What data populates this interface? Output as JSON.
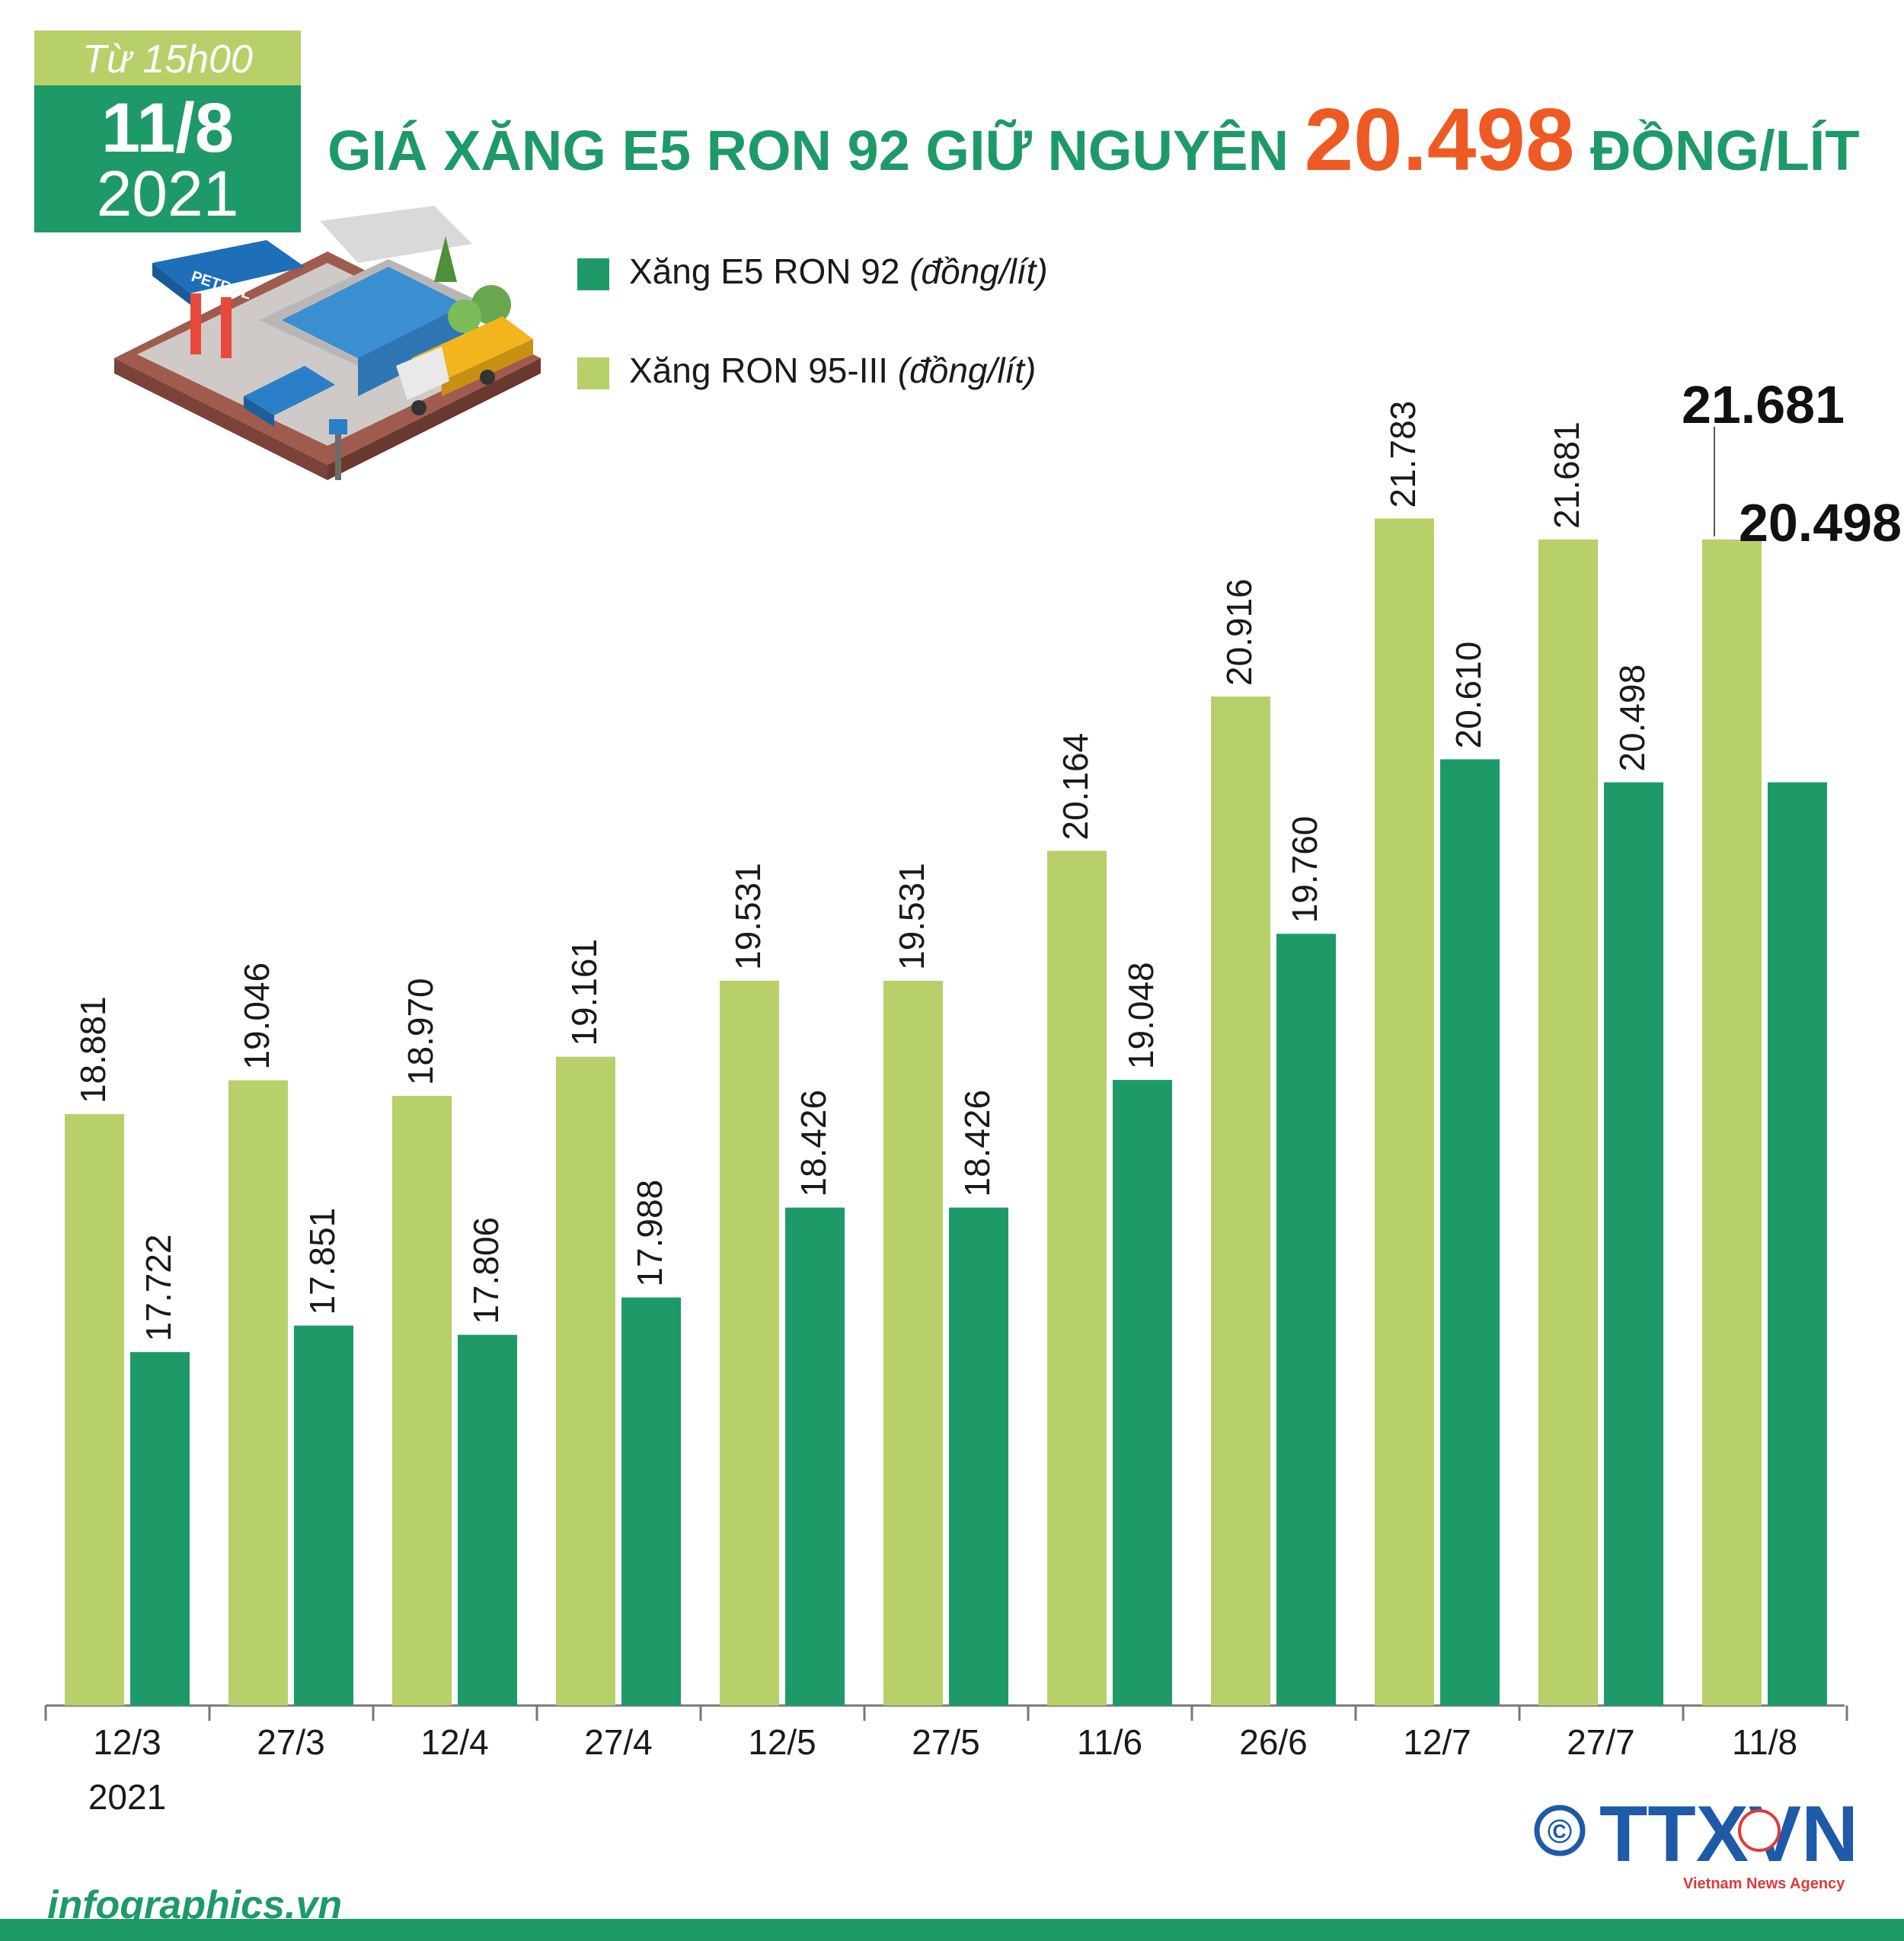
{
  "badge": {
    "from_time": "Từ 15h00",
    "day": "11/8",
    "year": "2021"
  },
  "title": {
    "prefix": "GIÁ XĂNG E5 RON 92 GIỮ NGUYÊN",
    "highlight": "20.498",
    "suffix": "ĐỒNG/LÍT"
  },
  "footer": {
    "site": "infographics.vn",
    "copyright_symbol": "©",
    "agency_logo": "TTXVN",
    "agency_tagline": "Vietnam News Agency"
  },
  "colors": {
    "accent_green": "#1e9a68",
    "light_green": "#b7d06a",
    "highlight_orange": "#ee5a24"
  },
  "icons": [
    "petrol-station-illustration",
    "copyright-icon",
    "ttxvn-logo"
  ],
  "chart_data": {
    "type": "bar",
    "categories": [
      "12/3\n2021",
      "27/3",
      "12/4",
      "27/4",
      "12/5",
      "27/5",
      "11/6",
      "26/6",
      "12/7",
      "27/7",
      "11/8"
    ],
    "series": [
      {
        "name": "Xăng RON 95-III",
        "unit": "(đồng/lít)",
        "color": "#b7d06a",
        "values": [
          18881,
          19046,
          18970,
          19161,
          19531,
          19531,
          20164,
          20916,
          21783,
          21681,
          21681
        ],
        "labels": [
          "18.881",
          "19.046",
          "18.970",
          "19.161",
          "19.531",
          "19.531",
          "20.164",
          "20.916",
          "21.783",
          "21.681",
          "21.681"
        ]
      },
      {
        "name": "Xăng E5 RON 92",
        "unit": "(đồng/lít)",
        "color": "#1e9a68",
        "values": [
          17722,
          17851,
          17806,
          17988,
          18426,
          18426,
          19048,
          19760,
          20610,
          20498,
          20498
        ],
        "labels": [
          "17.722",
          "17.851",
          "17.806",
          "17.988",
          "18.426",
          "18.426",
          "19.048",
          "19.760",
          "20.610",
          "20.498",
          "20.498"
        ]
      }
    ],
    "legend": {
      "placement": "top-center"
    },
    "grid": false,
    "value_labels": "rotated-vertical; last category labels horizontal and bold"
  }
}
